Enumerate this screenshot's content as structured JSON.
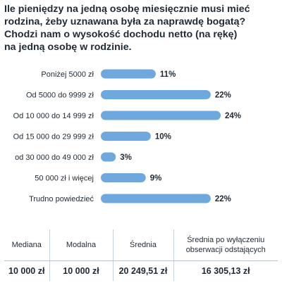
{
  "title_lines": [
    "Ile pieniędzy na jedną osobę miesięcznie musi mieć",
    "rodzina, żeby uznawana była za naprawdę bogatą?",
    "Chodzi nam o wysokość dochodu netto (na rękę)",
    "na jedną osobę w rodzinie."
  ],
  "chart_data": {
    "type": "bar",
    "orientation": "horizontal",
    "categories": [
      "Poniżej 5000 zł",
      "Od 5000 do 9999 zł",
      "Od 10 000 do 14 999 zł",
      "Od 15 000 do 29 999 zł",
      "od 30 000 do 49 000 zł",
      "50 000 zł i więcej",
      "Trudno powiedzieć"
    ],
    "values": [
      11,
      22,
      24,
      10,
      3,
      9,
      22
    ],
    "value_labels": [
      "11%",
      "22%",
      "24%",
      "10%",
      "3%",
      "9%",
      "22%"
    ],
    "unit": "%",
    "xlim": [
      0,
      24
    ],
    "grid": false,
    "bar_color": "#6fa8dc"
  },
  "stats_table": {
    "headers": [
      "Mediana",
      "Modalna",
      "Średnia",
      "Średnia po wyłączeniu obserwacji odstających"
    ],
    "values": [
      "10 000 zł",
      "10 000 zł",
      "20 249,51 zł",
      "16 305,13 zł"
    ]
  }
}
